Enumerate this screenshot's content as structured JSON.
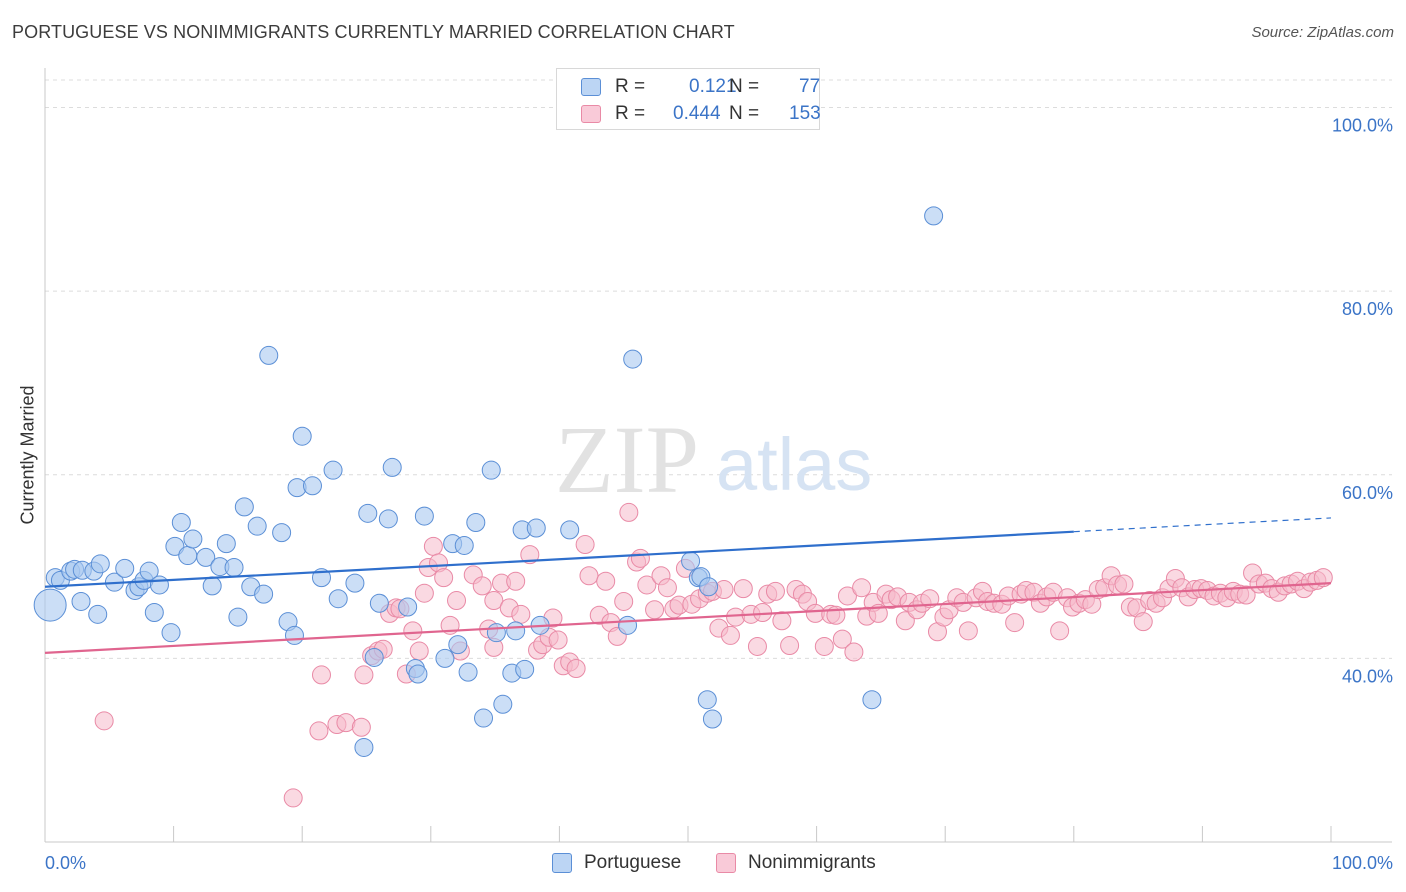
{
  "title": "PORTUGUESE VS NONIMMIGRANTS CURRENTLY MARRIED CORRELATION CHART",
  "source": "Source: ZipAtlas.com",
  "watermark": {
    "zip": "ZIP",
    "atlas": "atlas"
  },
  "legend": {
    "rows": [
      {
        "r_label": "R =",
        "r_value": "0.121",
        "n_label": "N =",
        "n_value": "77"
      },
      {
        "r_label": "R =",
        "r_value": "0.444",
        "n_label": "N =",
        "n_value": "153"
      }
    ]
  },
  "colors": {
    "portuguese_fill": "#a9c8f0",
    "portuguese_stroke": "#5b8fd6",
    "portuguese_line": "#2f6fcc",
    "nonimmigrants_fill": "#f6b9cb",
    "nonimmigrants_stroke": "#e98aa6",
    "nonimmigrants_line": "#e0658f",
    "axis_text": "#3b74c7",
    "grid": "#dcdcdc"
  },
  "chart_data": {
    "type": "scatter",
    "title": "PORTUGUESE VS NONIMMIGRANTS CURRENTLY MARRIED CORRELATION CHART",
    "xlabel": "",
    "ylabel": "Currently Married",
    "xlim": [
      0,
      100
    ],
    "ylim": [
      20,
      103
    ],
    "x_tick_labels": [
      "0.0%",
      "100.0%"
    ],
    "y_ticks": [
      40,
      60,
      80,
      100
    ],
    "y_tick_labels": [
      "40.0%",
      "60.0%",
      "80.0%",
      "100.0%"
    ],
    "grid": "horizontal dashed",
    "series": [
      {
        "name": "Portuguese",
        "r": 0.121,
        "n": 77,
        "trend": {
          "x0": 0,
          "y0": 47.8,
          "x1": 80,
          "y1": 53.8,
          "dashed_to_x": 100,
          "dashed_to_y": 55.3
        },
        "points": [
          [
            0.4,
            45.8,
            3
          ],
          [
            0.8,
            48.8,
            1
          ],
          [
            1.2,
            48.5,
            1
          ],
          [
            2.0,
            49.5,
            1
          ],
          [
            2.3,
            49.7,
            1
          ],
          [
            2.9,
            49.6,
            1
          ],
          [
            3.8,
            49.5,
            1
          ],
          [
            4.3,
            50.3,
            1
          ],
          [
            2.8,
            46.2,
            1
          ],
          [
            5.4,
            48.3,
            1
          ],
          [
            6.2,
            49.8,
            1
          ],
          [
            7.0,
            47.4,
            1
          ],
          [
            7.3,
            47.8,
            1
          ],
          [
            7.7,
            48.5,
            1
          ],
          [
            8.1,
            49.5,
            1
          ],
          [
            8.9,
            48.0,
            1
          ],
          [
            4.1,
            44.8,
            1
          ],
          [
            8.5,
            45.0,
            1
          ],
          [
            9.8,
            42.8,
            1
          ],
          [
            10.1,
            52.2,
            1
          ],
          [
            10.6,
            54.8,
            1
          ],
          [
            11.1,
            51.2,
            1
          ],
          [
            11.5,
            53.0,
            1
          ],
          [
            12.5,
            51.0,
            1
          ],
          [
            13.0,
            47.9,
            1
          ],
          [
            13.6,
            50.0,
            1
          ],
          [
            14.1,
            52.5,
            1
          ],
          [
            14.7,
            49.9,
            1
          ],
          [
            15.0,
            44.5,
            1
          ],
          [
            15.5,
            56.5,
            1
          ],
          [
            16.0,
            47.8,
            1
          ],
          [
            16.5,
            54.4,
            1
          ],
          [
            17.0,
            47.0,
            1
          ],
          [
            17.4,
            73.0,
            1
          ],
          [
            18.4,
            53.7,
            1
          ],
          [
            18.9,
            44.0,
            1
          ],
          [
            19.4,
            42.5,
            1
          ],
          [
            19.6,
            58.6,
            1
          ],
          [
            20.0,
            64.2,
            1
          ],
          [
            20.8,
            58.8,
            1
          ],
          [
            21.5,
            48.8,
            1
          ],
          [
            22.4,
            60.5,
            1
          ],
          [
            22.8,
            46.5,
            1
          ],
          [
            24.1,
            48.2,
            1
          ],
          [
            25.1,
            55.8,
            1
          ],
          [
            25.6,
            40.1,
            1
          ],
          [
            26.0,
            46.0,
            1
          ],
          [
            26.7,
            55.2,
            1
          ],
          [
            27.0,
            60.8,
            1
          ],
          [
            28.2,
            45.6,
            1
          ],
          [
            28.8,
            38.9,
            1
          ],
          [
            29.0,
            38.3,
            1
          ],
          [
            29.5,
            55.5,
            1
          ],
          [
            31.1,
            40.0,
            1
          ],
          [
            31.7,
            52.5,
            1
          ],
          [
            32.1,
            41.5,
            1
          ],
          [
            32.6,
            52.3,
            1
          ],
          [
            32.9,
            38.5,
            1
          ],
          [
            33.5,
            54.8,
            1
          ],
          [
            34.1,
            33.5,
            1
          ],
          [
            34.7,
            60.5,
            1
          ],
          [
            35.1,
            42.8,
            1
          ],
          [
            35.6,
            35.0,
            1
          ],
          [
            36.3,
            38.4,
            1
          ],
          [
            36.6,
            43.0,
            1
          ],
          [
            37.1,
            54.0,
            1
          ],
          [
            37.3,
            38.8,
            1
          ],
          [
            38.2,
            54.2,
            1
          ],
          [
            38.5,
            43.6,
            1
          ],
          [
            40.8,
            54.0,
            1
          ],
          [
            45.3,
            43.6,
            1
          ],
          [
            45.7,
            72.6,
            1
          ],
          [
            50.2,
            50.6,
            1
          ],
          [
            50.8,
            48.8,
            1
          ],
          [
            51.0,
            48.9,
            1
          ],
          [
            51.6,
            47.8,
            1
          ],
          [
            51.9,
            33.4,
            1
          ],
          [
            24.8,
            30.3,
            1
          ],
          [
            51.5,
            35.5,
            1
          ],
          [
            64.3,
            35.5,
            1
          ],
          [
            69.1,
            88.2,
            1
          ]
        ]
      },
      {
        "name": "Nonimmigrants",
        "r": 0.444,
        "n": 153,
        "trend": {
          "x0": 0,
          "y0": 40.6,
          "x1": 100,
          "y1": 48.2
        },
        "points": [
          [
            4.6,
            33.2
          ],
          [
            19.3,
            24.8
          ],
          [
            21.3,
            32.1
          ],
          [
            21.5,
            38.2
          ],
          [
            22.7,
            32.8
          ],
          [
            23.4,
            33.0
          ],
          [
            24.6,
            32.5
          ],
          [
            24.8,
            38.2
          ],
          [
            25.4,
            40.3
          ],
          [
            25.9,
            40.8
          ],
          [
            26.3,
            41.0
          ],
          [
            26.8,
            44.9
          ],
          [
            27.3,
            45.5
          ],
          [
            27.6,
            45.4
          ],
          [
            28.1,
            38.3
          ],
          [
            28.6,
            43.0
          ],
          [
            29.1,
            40.8
          ],
          [
            29.5,
            47.1
          ],
          [
            29.8,
            49.9
          ],
          [
            30.2,
            52.2
          ],
          [
            30.6,
            50.4
          ],
          [
            31.0,
            48.8
          ],
          [
            31.5,
            43.6
          ],
          [
            32.0,
            46.3
          ],
          [
            32.3,
            40.8
          ],
          [
            33.3,
            49.1
          ],
          [
            34.0,
            47.9
          ],
          [
            34.5,
            43.2
          ],
          [
            34.9,
            46.3
          ],
          [
            35.5,
            48.2
          ],
          [
            36.1,
            45.5
          ],
          [
            36.6,
            48.4
          ],
          [
            37.0,
            44.8
          ],
          [
            37.7,
            51.3
          ],
          [
            38.3,
            40.9
          ],
          [
            38.7,
            41.5
          ],
          [
            39.2,
            42.3
          ],
          [
            39.5,
            44.4
          ],
          [
            39.9,
            42.0
          ],
          [
            40.3,
            39.2
          ],
          [
            40.8,
            39.6
          ],
          [
            41.3,
            38.9
          ],
          [
            42.0,
            52.4
          ],
          [
            42.3,
            49.0
          ],
          [
            43.1,
            44.7
          ],
          [
            43.6,
            48.4
          ],
          [
            44.0,
            43.9
          ],
          [
            44.5,
            42.4
          ],
          [
            45.0,
            46.2
          ],
          [
            45.4,
            55.9
          ],
          [
            46.0,
            50.5
          ],
          [
            46.3,
            50.9
          ],
          [
            46.8,
            48.0
          ],
          [
            47.4,
            45.3
          ],
          [
            47.9,
            49.0
          ],
          [
            48.4,
            47.7
          ],
          [
            48.9,
            45.4
          ],
          [
            49.3,
            45.8
          ],
          [
            49.8,
            49.8
          ],
          [
            50.3,
            45.9
          ],
          [
            50.9,
            46.5
          ],
          [
            51.5,
            47.1
          ],
          [
            51.9,
            47.3
          ],
          [
            52.4,
            43.3
          ],
          [
            52.8,
            47.5
          ],
          [
            53.3,
            42.5
          ],
          [
            53.7,
            44.5
          ],
          [
            54.3,
            47.6
          ],
          [
            54.9,
            44.8
          ],
          [
            55.4,
            41.3
          ],
          [
            55.8,
            45.0
          ],
          [
            56.2,
            47.0
          ],
          [
            56.8,
            47.3
          ],
          [
            57.3,
            44.1
          ],
          [
            57.9,
            41.4
          ],
          [
            58.4,
            47.5
          ],
          [
            58.9,
            47.0
          ],
          [
            59.3,
            46.2
          ],
          [
            59.9,
            44.9
          ],
          [
            60.6,
            41.3
          ],
          [
            61.1,
            44.8
          ],
          [
            61.5,
            44.7
          ],
          [
            62.0,
            42.1
          ],
          [
            62.4,
            46.8
          ],
          [
            62.9,
            40.7
          ],
          [
            63.5,
            47.7
          ],
          [
            63.9,
            44.6
          ],
          [
            64.4,
            46.1
          ],
          [
            64.8,
            44.9
          ],
          [
            65.4,
            47.0
          ],
          [
            65.8,
            46.4
          ],
          [
            66.3,
            46.7
          ],
          [
            66.9,
            44.1
          ],
          [
            67.2,
            46.1
          ],
          [
            67.8,
            45.3
          ],
          [
            68.2,
            46.0
          ],
          [
            68.8,
            46.5
          ],
          [
            69.4,
            42.9
          ],
          [
            69.9,
            44.5
          ],
          [
            70.3,
            45.3
          ],
          [
            70.9,
            46.6
          ],
          [
            71.4,
            46.1
          ],
          [
            71.8,
            43.0
          ],
          [
            72.4,
            46.6
          ],
          [
            72.9,
            47.3
          ],
          [
            73.3,
            46.2
          ],
          [
            73.8,
            46.0
          ],
          [
            74.4,
            45.9
          ],
          [
            74.9,
            46.8
          ],
          [
            75.4,
            43.9
          ],
          [
            75.9,
            47.0
          ],
          [
            76.3,
            47.4
          ],
          [
            76.9,
            47.2
          ],
          [
            77.4,
            46.0
          ],
          [
            77.9,
            46.7
          ],
          [
            78.4,
            47.2
          ],
          [
            78.9,
            43.0
          ],
          [
            79.5,
            46.6
          ],
          [
            79.9,
            45.6
          ],
          [
            80.4,
            46.0
          ],
          [
            80.9,
            46.4
          ],
          [
            81.4,
            45.9
          ],
          [
            81.9,
            47.5
          ],
          [
            82.4,
            47.7
          ],
          [
            82.9,
            49.0
          ],
          [
            83.4,
            48.0
          ],
          [
            83.9,
            48.1
          ],
          [
            84.4,
            45.6
          ],
          [
            84.9,
            45.5
          ],
          [
            85.4,
            44.0
          ],
          [
            85.9,
            46.3
          ],
          [
            86.4,
            46.0
          ],
          [
            86.9,
            46.6
          ],
          [
            87.4,
            47.6
          ],
          [
            87.9,
            48.7
          ],
          [
            88.4,
            47.7
          ],
          [
            88.9,
            46.7
          ],
          [
            89.4,
            47.5
          ],
          [
            89.9,
            47.6
          ],
          [
            90.4,
            47.4
          ],
          [
            90.9,
            46.8
          ],
          [
            91.4,
            47.1
          ],
          [
            91.9,
            46.6
          ],
          [
            92.4,
            47.3
          ],
          [
            92.9,
            47.0
          ],
          [
            93.4,
            46.9
          ],
          [
            93.9,
            49.3
          ],
          [
            94.4,
            48.1
          ],
          [
            94.9,
            48.2
          ],
          [
            95.4,
            47.6
          ],
          [
            95.9,
            47.2
          ],
          [
            96.4,
            47.9
          ],
          [
            96.9,
            48.1
          ],
          [
            97.4,
            48.4
          ],
          [
            97.9,
            47.6
          ],
          [
            98.4,
            48.3
          ],
          [
            98.9,
            48.5
          ],
          [
            99.4,
            48.8
          ],
          [
            34.9,
            41.2
          ]
        ]
      }
    ]
  },
  "bottom_legend": [
    "Portuguese",
    "Nonimmigrants"
  ]
}
